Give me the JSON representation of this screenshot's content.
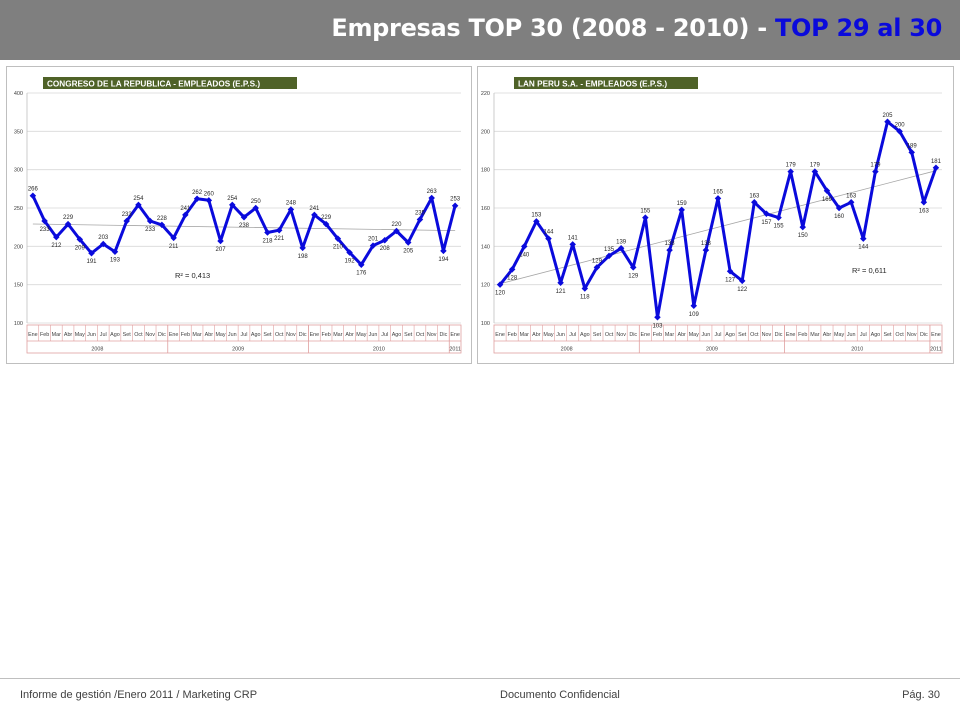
{
  "header": {
    "title_main": "Empresas TOP 30 (2008 - 2010) - ",
    "title_accent": "TOP 29 al 30"
  },
  "footer": {
    "left": "Informe de gestión /Enero 2011 / Marketing CRP",
    "center": "Documento Confidencial",
    "right": "Pág. 30"
  },
  "colors": {
    "series": "#0a0adc",
    "title_box": "#4f6228",
    "grid": "#d9d9d9",
    "axis_box": "#e0a0a0"
  },
  "chart_data": [
    {
      "type": "line",
      "title": "CONGRESO DE LA REPUBLICA - EMPLEADOS (E.P.S.)",
      "months": [
        "Ene",
        "Feb",
        "Mar",
        "Abr",
        "May",
        "Jun",
        "Jul",
        "Ago",
        "Set",
        "Oct",
        "Nov",
        "Dic",
        "Ene",
        "Feb",
        "Mar",
        "Abr",
        "May",
        "Jun",
        "Jul",
        "Ago",
        "Set",
        "Oct",
        "Nov",
        "Dic",
        "Ene",
        "Feb",
        "Mar",
        "Abr",
        "May",
        "Jun",
        "Jul",
        "Ago",
        "Set",
        "Oct",
        "Nov",
        "Dic",
        "Ene"
      ],
      "years": [
        {
          "label": "2008",
          "span": 12
        },
        {
          "label": "2009",
          "span": 12
        },
        {
          "label": "2010",
          "span": 12
        },
        {
          "label": "2011",
          "span": 1
        }
      ],
      "values": [
        266,
        233,
        212,
        229,
        209,
        191,
        203,
        193,
        233,
        254,
        233,
        228,
        211,
        241,
        262,
        260,
        207,
        254,
        238,
        250,
        218,
        221,
        248,
        198,
        241,
        229,
        210,
        192,
        176,
        201,
        208,
        220,
        205,
        235,
        263,
        194,
        253
      ],
      "ylim": [
        100,
        400
      ],
      "yticks": [
        100,
        150,
        200,
        250,
        300,
        350,
        400
      ],
      "trendline": true,
      "r2_label": "R² = 0,413",
      "grid": true,
      "legend": "none"
    },
    {
      "type": "line",
      "title": "LAN PERU S.A. - EMPLEADOS (E.P.S.)",
      "months": [
        "Ene",
        "Feb",
        "Mar",
        "Abr",
        "May",
        "Jun",
        "Jul",
        "Ago",
        "Set",
        "Oct",
        "Nov",
        "Dic",
        "Ene",
        "Feb",
        "Mar",
        "Abr",
        "May",
        "Jun",
        "Jul",
        "Ago",
        "Set",
        "Oct",
        "Nov",
        "Dic",
        "Ene",
        "Feb",
        "Mar",
        "Abr",
        "May",
        "Jun",
        "Jul",
        "Ago",
        "Set",
        "Oct",
        "Nov",
        "Dic",
        "Ene"
      ],
      "years": [
        {
          "label": "2008",
          "span": 12
        },
        {
          "label": "2009",
          "span": 12
        },
        {
          "label": "2010",
          "span": 12
        },
        {
          "label": "2011",
          "span": 1
        }
      ],
      "values": [
        120,
        128,
        140,
        153,
        144,
        121,
        141,
        118,
        129,
        135,
        139,
        129,
        155,
        103,
        138,
        159,
        109,
        138,
        165,
        127,
        122,
        163,
        157,
        155,
        179,
        150,
        179,
        169,
        160,
        163,
        144,
        179,
        205,
        200,
        189,
        163,
        181
      ],
      "ylim": [
        100,
        220
      ],
      "yticks": [
        100,
        120,
        140,
        160,
        180,
        200,
        220
      ],
      "trendline": true,
      "r2_label": "R² = 0,611",
      "grid": true,
      "legend": "none"
    }
  ]
}
